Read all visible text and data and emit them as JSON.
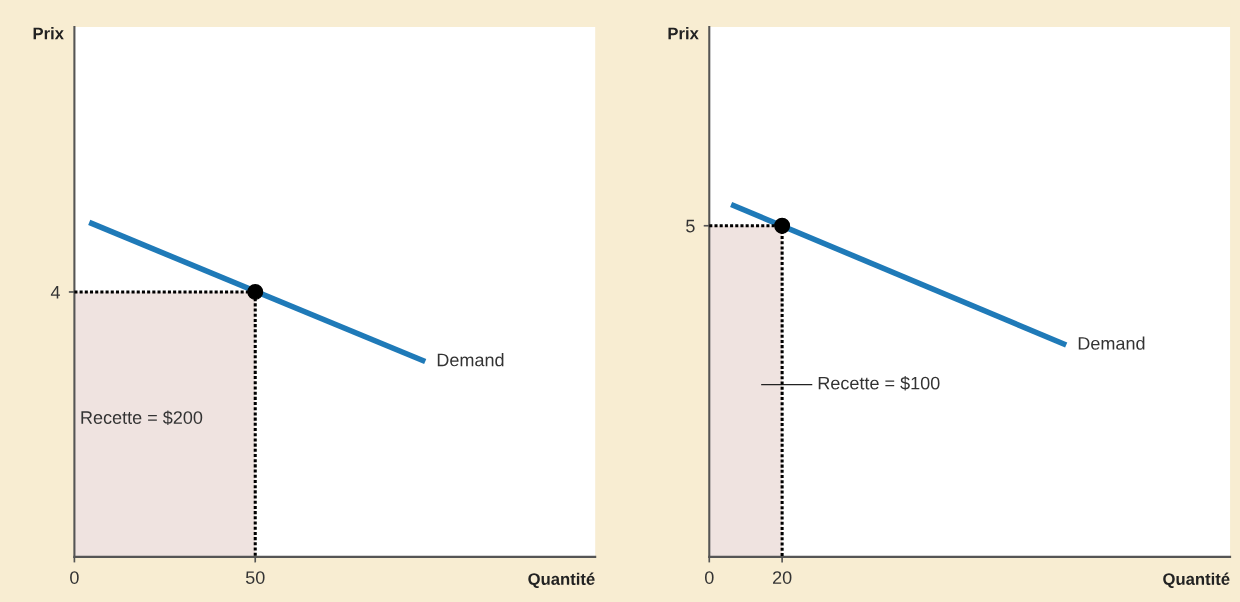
{
  "chart_data": [
    {
      "type": "line",
      "xlabel": "Quantité",
      "ylabel": "Prix",
      "xlim": [
        0,
        144
      ],
      "ylim": [
        0,
        8
      ],
      "xticks": [
        0,
        50
      ],
      "yticks": [
        4
      ],
      "grid": false,
      "legend": false,
      "series": [
        {
          "type": "area",
          "color": "#efe3e0",
          "x": [
            0,
            50
          ],
          "values": [
            4,
            4
          ]
        },
        {
          "name": "Demand",
          "color": "#1f7ab8",
          "x": [
            4.1,
            97
          ],
          "values": [
            5.05,
            2.95
          ]
        },
        {
          "type": "scatter",
          "marker": "circle",
          "line_style": "dotted",
          "color": "#000000",
          "x": [
            50
          ],
          "values": [
            4
          ]
        }
      ],
      "annotations": [
        "Recette = $200"
      ]
    },
    {
      "type": "line",
      "xlabel": "Quantité",
      "ylabel": "Prix",
      "xlim": [
        0,
        143
      ],
      "ylim": [
        0,
        8
      ],
      "xticks": [
        0,
        20
      ],
      "yticks": [
        5
      ],
      "grid": false,
      "legend": false,
      "series": [
        {
          "type": "area",
          "color": "#efe3e0",
          "x": [
            0,
            20
          ],
          "values": [
            5,
            5
          ]
        },
        {
          "name": "Demand",
          "color": "#1f7ab8",
          "x": [
            6,
            98
          ],
          "values": [
            5.32,
            3.2
          ]
        },
        {
          "type": "scatter",
          "marker": "circle",
          "line_style": "dotted",
          "color": "#000000",
          "x": [
            20
          ],
          "values": [
            5
          ]
        }
      ],
      "annotations": [
        "Recette = $100"
      ]
    }
  ]
}
